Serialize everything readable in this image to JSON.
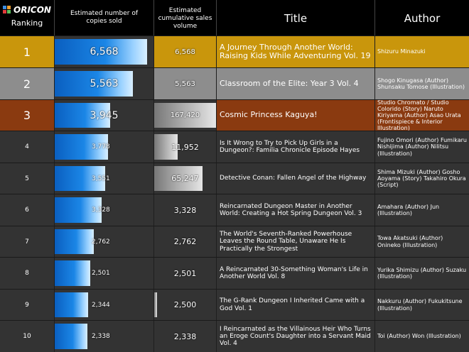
{
  "header": {
    "logo_text": "ORICON",
    "ranking": "Ranking",
    "copies": "Estimated number of copies sold",
    "cumulative": "Estimated cumulative sales volume",
    "title": "Title",
    "author": "Author"
  },
  "colors": {
    "gold": "#c9960c",
    "silver": "#8d8d8d",
    "bronze": "#8a3a10",
    "dark": "#333333",
    "bar_blue": "#1b86e6"
  },
  "chart_data": {
    "type": "table",
    "columns": [
      "Ranking",
      "Estimated number of copies sold",
      "Estimated cumulative sales volume",
      "Title",
      "Author"
    ],
    "rows": [
      {
        "rank": "1",
        "copies": 6568,
        "copies_label": "6,568",
        "cumulative": 6568,
        "cumulative_label": "6,568",
        "title": "A Journey Through Another World: Raising Kids While Adventuring Vol. 19",
        "author": "Shizuru Minazuki"
      },
      {
        "rank": "2",
        "copies": 5563,
        "copies_label": "5,563",
        "cumulative": 5563,
        "cumulative_label": "5,563",
        "title": "Classroom of the Elite: Year 3 Vol. 4",
        "author": "Shogo Kinugasa (Author) Shunsaku Tomose (Illustration)"
      },
      {
        "rank": "3",
        "copies": 3945,
        "copies_label": "3,945",
        "cumulative": 167420,
        "cumulative_label": "167,420",
        "title": "Cosmic Princess Kaguya!",
        "author": "Studio Chromato / Studio Colorido (Story) Naruto Kiriyama (Author) Asao Urata (Frontispiece & Interior Illustration)"
      },
      {
        "rank": "4",
        "copies": 3778,
        "copies_label": "3,778",
        "cumulative": 11952,
        "cumulative_label": "11,952",
        "title": "Is It Wrong to Try to Pick Up Girls in a Dungeon?: Familia Chronicle Episode Hayes",
        "author": "Fujino Omori (Author) Fumikaru Nishijima (Author) Nilitsu (Illustration)"
      },
      {
        "rank": "5",
        "copies": 3551,
        "copies_label": "3,551",
        "cumulative": 65247,
        "cumulative_label": "65,247",
        "title": "Detective Conan: Fallen Angel of the Highway",
        "author": "Shima Mizuki (Author) Gosho Aoyama (Story) Takahiro Okura (Script)"
      },
      {
        "rank": "6",
        "copies": 3328,
        "copies_label": "3,328",
        "cumulative": 3328,
        "cumulative_label": "3,328",
        "title": "Reincarnated Dungeon Master in Another World: Creating a Hot Spring Dungeon Vol. 3",
        "author": "Amahara (Author) Jun (Illustration)"
      },
      {
        "rank": "7",
        "copies": 2762,
        "copies_label": "2,762",
        "cumulative": 2762,
        "cumulative_label": "2,762",
        "title": "The World's Seventh-Ranked Powerhouse Leaves the Round Table, Unaware He Is Practically the Strongest",
        "author": "Towa Akatsuki (Author) Onineko (Illustration)"
      },
      {
        "rank": "8",
        "copies": 2501,
        "copies_label": "2,501",
        "cumulative": 2501,
        "cumulative_label": "2,501",
        "title": "A Reincarnated 30-Something Woman's Life in Another World Vol. 8",
        "author": "Yurika Shimizu (Author) Suzaku (Illustration)"
      },
      {
        "rank": "9",
        "copies": 2344,
        "copies_label": "2,344",
        "cumulative": 2500,
        "cumulative_label": "2,500",
        "title": "The G-Rank Dungeon I Inherited Came with a God Vol. 1",
        "author": "Nakkuru (Author) Fukukitsune (Illustration)"
      },
      {
        "rank": "10",
        "copies": 2338,
        "copies_label": "2,338",
        "cumulative": 2338,
        "cumulative_label": "2,338",
        "title": "I Reincarnated as the Villainous Heir Who Turns an Eroge Count's Daughter into a Servant Maid Vol. 4",
        "author": "Toi (Author) Won (Illustration)"
      }
    ]
  }
}
